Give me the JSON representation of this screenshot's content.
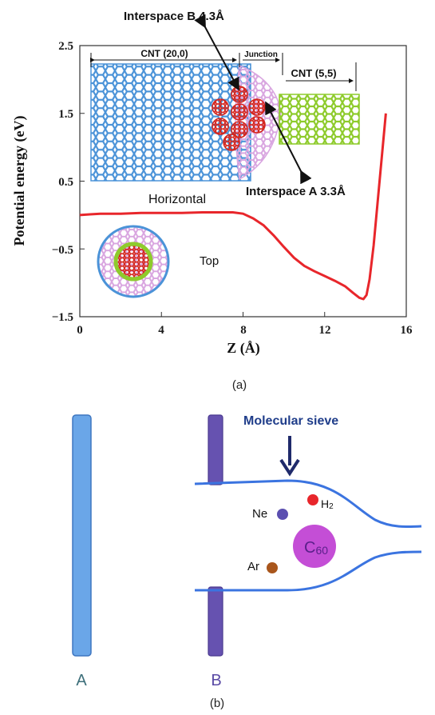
{
  "chart_data": {
    "type": "line",
    "xlabel": "Z (Å)",
    "ylabel": "Potential energy (eV)",
    "xlim": [
      0,
      16
    ],
    "ylim": [
      -1.5,
      2.5
    ],
    "x_ticks": [
      "0",
      "4",
      "8",
      "12",
      "16"
    ],
    "y_ticks": [
      "2.5",
      "1.5",
      "0.5",
      "−0.5",
      "−1.5"
    ],
    "grid": false,
    "series": [
      {
        "color": "#e8262b",
        "x": [
          0,
          0.5,
          1,
          1.5,
          2,
          3,
          4,
          5,
          6,
          7,
          7.5,
          8,
          8.5,
          9,
          9.5,
          10,
          10.5,
          11,
          11.5,
          12,
          12.5,
          13,
          13.4,
          13.7,
          13.9,
          14.05,
          14.2,
          14.4,
          14.6,
          14.8,
          15.0
        ],
        "y": [
          0.0,
          0.01,
          0.02,
          0.02,
          0.02,
          0.03,
          0.03,
          0.03,
          0.04,
          0.04,
          0.04,
          0.02,
          -0.05,
          -0.15,
          -0.3,
          -0.47,
          -0.63,
          -0.75,
          -0.83,
          -0.9,
          -0.97,
          -1.05,
          -1.15,
          -1.22,
          -1.24,
          -1.18,
          -0.95,
          -0.45,
          0.2,
          0.85,
          1.5
        ]
      }
    ]
  },
  "annotations": {
    "interspace_b": "Interspace B   4.3Å",
    "interspace_a": "Interspace A  3.3Å",
    "cnt_20_0": "CNT (20,0)",
    "junction": "Junction",
    "cnt_5_5": "CNT (5,5)",
    "horizontal": "Horizontal",
    "top": "Top"
  },
  "panel_b": {
    "title": "Molecular sieve",
    "labels": {
      "a": "A",
      "b": "B"
    },
    "particles": [
      {
        "name": "H2",
        "label": "H",
        "sub": "2",
        "color": "#e8262b"
      },
      {
        "name": "Ne",
        "label": "Ne",
        "color": "#5b4fb0"
      },
      {
        "name": "C60",
        "label": "C",
        "sub": "60",
        "color": "#c44ed6"
      },
      {
        "name": "Ar",
        "label": "Ar",
        "color": "#a9561c"
      }
    ]
  },
  "captions": {
    "a": "(a)",
    "b": "(b)"
  },
  "colors": {
    "cnt_blue": "#4b93d8",
    "junction_pink": "#d9a6e0",
    "cnt_green": "#8ecb2c",
    "c60_red": "#d4261e",
    "curve_red": "#e8262b",
    "wall_a": "#6aa6e8",
    "wall_b": "#6652b0",
    "tube_line": "#3b74e0",
    "arrow": "#1f2a6b",
    "title_blue": "#1f3d8a",
    "label_teal": "#3d6f7a",
    "label_purple": "#5a4aa5"
  }
}
